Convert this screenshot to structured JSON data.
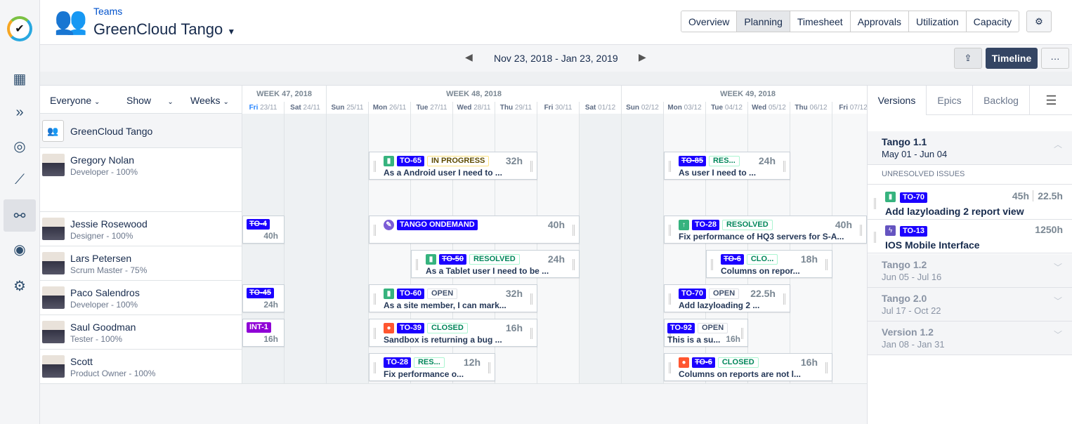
{
  "nav": {
    "items": [
      "logo-icon",
      "calendar-icon",
      "forward-icon",
      "dashboard-icon",
      "chart-icon",
      "structure-icon",
      "user-icon",
      "gear-icon"
    ]
  },
  "header": {
    "breadcrumb": "Teams",
    "title": "GreenCloud Tango",
    "tabs": [
      "Overview",
      "Planning",
      "Timesheet",
      "Approvals",
      "Utilization",
      "Capacity"
    ],
    "active_tab": "Planning"
  },
  "toolbar": {
    "date_range": "Nov 23, 2018 - Jan 23, 2019",
    "timeline": "Timeline",
    "more": "···"
  },
  "filters": {
    "everyone": "Everyone",
    "show": "Show",
    "weeks": "Weeks"
  },
  "weeks": [
    {
      "label": "WEEK 47, 2018",
      "days": 2
    },
    {
      "label": "WEEK 48, 2018",
      "days": 7
    },
    {
      "label": "WEEK 49, 2018",
      "days": 6
    }
  ],
  "days": [
    [
      "Fri",
      "23/11"
    ],
    [
      "Sat",
      "24/11"
    ],
    [
      "Sun",
      "25/11"
    ],
    [
      "Mon",
      "26/11"
    ],
    [
      "Tue",
      "27/11"
    ],
    [
      "Wed",
      "28/11"
    ],
    [
      "Thu",
      "29/11"
    ],
    [
      "Fri",
      "30/11"
    ],
    [
      "Sat",
      "01/12"
    ],
    [
      "Sun",
      "02/12"
    ],
    [
      "Mon",
      "03/12"
    ],
    [
      "Tue",
      "04/12"
    ],
    [
      "Wed",
      "05/12"
    ],
    [
      "Thu",
      "06/12"
    ],
    [
      "Fri",
      "07/12"
    ]
  ],
  "team": {
    "name": "GreenCloud Tango"
  },
  "people": [
    {
      "name": "Gregory Nolan",
      "role": "Developer - 100%",
      "cards": [
        {
          "start": 3,
          "days": 4,
          "type": "story",
          "key": "TO-65",
          "status": "IN PROGRESS",
          "hours": "32h",
          "title": "As a Android user I need to ..."
        },
        {
          "start": 10,
          "days": 3,
          "key": "TO-85",
          "strike": true,
          "status": "RES...",
          "hours": "24h",
          "title": "As user I need to ..."
        }
      ]
    },
    {
      "name": "Jessie Rosewood",
      "role": "Designer - 100%",
      "cards": [
        {
          "start": 0,
          "days": 1,
          "key": "TO-4",
          "strike": true,
          "hours": "40h"
        },
        {
          "start": 3,
          "days": 5,
          "type": "epic",
          "key": "TANGO ONDEMAND",
          "hours": "40h",
          "title": ""
        },
        {
          "start": 10,
          "days": 5,
          "type": "improvement",
          "key": "TO-28",
          "status": "RESOLVED",
          "hours": "40h",
          "title": "Fix performance of HQ3 servers for S-A..."
        }
      ]
    },
    {
      "name": "Lars Petersen",
      "role": "Scrum Master - 75%",
      "cards": [
        {
          "start": 4,
          "days": 4,
          "type": "story",
          "key": "TO-50",
          "strike": true,
          "status": "RESOLVED",
          "hours": "24h",
          "title": "As a Tablet user I need to be ..."
        },
        {
          "start": 11,
          "days": 3,
          "key": "TO-6",
          "strike": true,
          "status": "CLO...",
          "hours": "18h",
          "title": "Columns on repor..."
        }
      ]
    },
    {
      "name": "Paco Salendros",
      "role": "Developer - 100%",
      "cards": [
        {
          "start": 0,
          "days": 1,
          "key": "TO-45",
          "strike": true,
          "hours": "24h"
        },
        {
          "start": 3,
          "days": 4,
          "type": "story",
          "key": "TO-60",
          "status": "OPEN",
          "hours": "32h",
          "title": "As a site member, I can mark..."
        },
        {
          "start": 10,
          "days": 3,
          "key": "TO-70",
          "status": "OPEN",
          "hours": "22.5h",
          "title": "Add lazyloading 2 ..."
        }
      ]
    },
    {
      "name": "Saul Goodman",
      "role": "Tester - 100%",
      "cards": [
        {
          "start": 0,
          "days": 1,
          "key": "INT-1",
          "purple": true,
          "hours": "16h"
        },
        {
          "start": 3,
          "days": 4,
          "type": "bug",
          "key": "TO-39",
          "status": "CLOSED",
          "hours": "16h",
          "title": "Sandbox is returning a bug ..."
        },
        {
          "start": 10,
          "days": 2,
          "key": "TO-92",
          "status": "OPEN",
          "hours": "16h",
          "title": "This is a su..."
        }
      ]
    },
    {
      "name": "Scott",
      "role": "Product Owner - 100%",
      "cards": [
        {
          "start": 3,
          "days": 3,
          "key": "TO-28",
          "status": "RES...",
          "hours": "12h",
          "title": "Fix performance o..."
        },
        {
          "start": 10,
          "days": 4,
          "type": "bug",
          "key": "TO-6",
          "strike": true,
          "status": "CLOSED",
          "hours": "16h",
          "title": "Columns on reports are not l..."
        }
      ]
    }
  ],
  "side": {
    "tabs": [
      "Versions",
      "Epics",
      "Backlog"
    ],
    "active": "Versions",
    "open_version": {
      "name": "Tango 1.1",
      "dates": "May 01 - Jun 04"
    },
    "unresolved": "UNRESOLVED ISSUES",
    "issues": [
      {
        "type": "story",
        "key": "TO-70",
        "hours": "45h",
        "remaining": "22.5h",
        "title": "Add lazyloading 2 report view"
      },
      {
        "type": "epic",
        "key": "TO-13",
        "hours": "1250h",
        "title": "IOS Mobile Interface"
      }
    ],
    "versions": [
      {
        "name": "Tango 1.2",
        "dates": "Jun 05 - Jul 16"
      },
      {
        "name": "Tango 2.0",
        "dates": "Jul 17 - Oct 22"
      },
      {
        "name": "Version 1.2",
        "dates": "Jan 08 - Jan 31"
      }
    ]
  },
  "colors": {
    "key": "#1b00ff",
    "story": "#36b37e",
    "bug": "#ff5630",
    "epic": "#6554c0",
    "improvement": "#36b37e",
    "resolved": "#00875a",
    "inprogress": "#ffc400"
  }
}
